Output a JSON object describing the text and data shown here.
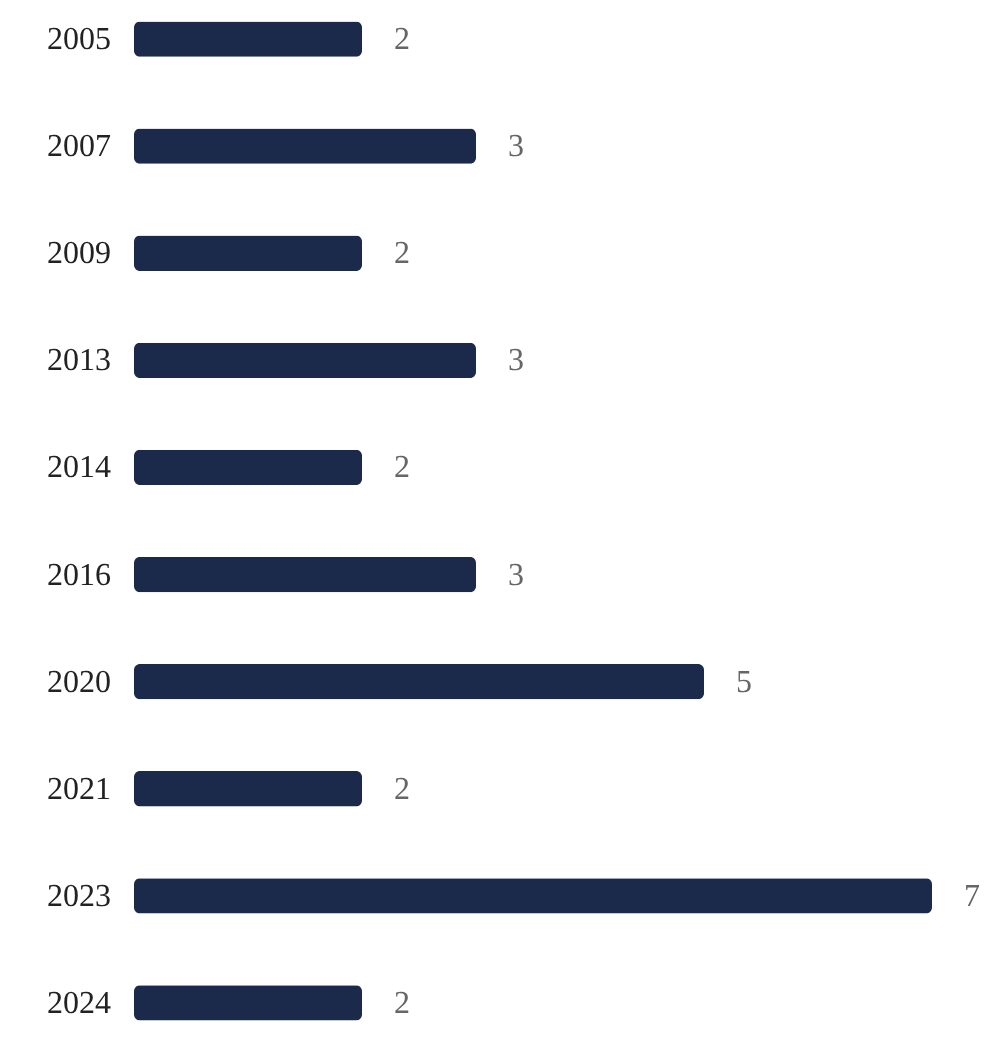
{
  "chart_data": {
    "type": "bar",
    "orientation": "horizontal",
    "categories": [
      "2005",
      "2007",
      "2009",
      "2013",
      "2014",
      "2016",
      "2020",
      "2021",
      "2023",
      "2024"
    ],
    "values": [
      2,
      3,
      2,
      3,
      2,
      3,
      5,
      2,
      7,
      2
    ],
    "color": "#1b2a4a",
    "data_labels": true
  }
}
